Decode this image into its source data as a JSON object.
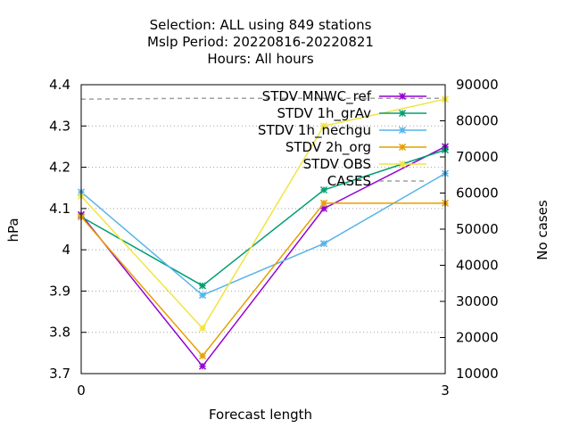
{
  "chart_data": {
    "type": "line",
    "title_lines": [
      "Selection: ALL using   849 stations",
      "Mslp   Period: 20220816-20220821",
      "Hours:  All hours"
    ],
    "xlabel": "Forecast length",
    "ylabel": "hPa",
    "y2label": "No cases",
    "xlim": [
      0,
      3
    ],
    "ylim": [
      3.7,
      4.4
    ],
    "y2lim": [
      10000,
      90000
    ],
    "x_ticks": [
      "0",
      "3"
    ],
    "y_ticks": [
      "3.7",
      "3.8",
      "3.9",
      "4",
      "4.1",
      "4.2",
      "4.3",
      "4.4"
    ],
    "y2_ticks": [
      "10000",
      "20000",
      "30000",
      "40000",
      "50000",
      "60000",
      "70000",
      "80000",
      "90000"
    ],
    "legend_position": "top-right",
    "grid": true,
    "x": [
      0,
      1,
      2,
      3
    ],
    "series": [
      {
        "name": "STDV MNWC_ref",
        "color": "#9400d3",
        "values": [
          4.085,
          3.718,
          4.1,
          4.25
        ]
      },
      {
        "name": "STDV 1h_grAv",
        "color": "#009e73",
        "values": [
          4.08,
          3.913,
          4.145,
          4.242
        ]
      },
      {
        "name": "STDV 1h_nechgu",
        "color": "#56b4e9",
        "values": [
          4.14,
          3.89,
          4.015,
          4.185
        ]
      },
      {
        "name": "STDV 2h_org",
        "color": "#e69f00",
        "values": [
          4.08,
          3.743,
          4.113,
          4.113
        ]
      },
      {
        "name": "STDV OBS",
        "color": "#f0e442",
        "values": [
          4.13,
          3.81,
          4.3,
          4.365
        ]
      }
    ],
    "cases": {
      "name": "CASES",
      "color": "#a0a0a0",
      "values": [
        86000,
        86250,
        86250,
        86250
      ]
    }
  }
}
